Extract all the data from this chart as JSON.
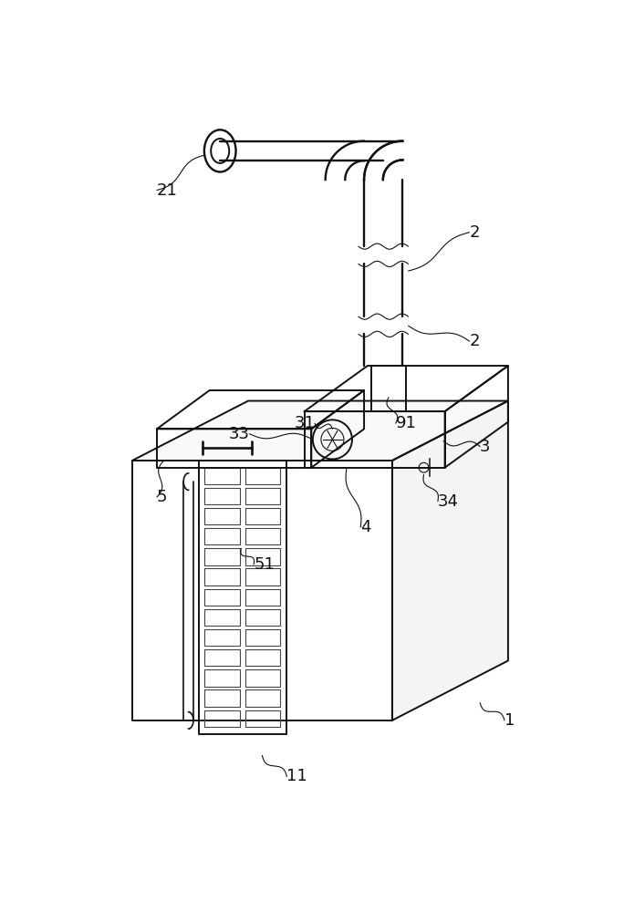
{
  "bg_color": "#ffffff",
  "line_color": "#111111",
  "lw": 1.4,
  "tlw": 0.8,
  "fs": 13
}
